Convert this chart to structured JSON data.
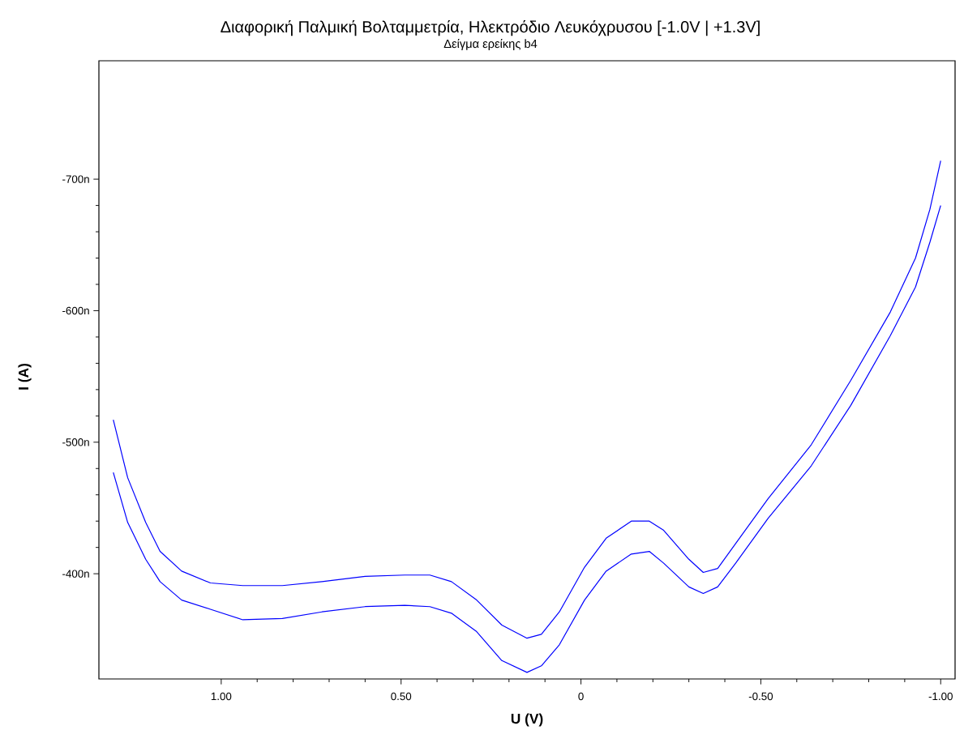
{
  "chart_data": {
    "type": "line",
    "title": "Διαφορική Παλμική Βολταμμετρία, Ηλεκτρόδιο Λευκόχρυσου [-1.0V | +1.3V]",
    "subtitle": "Δείγμα ερείκης b4",
    "xlabel": "U (V)",
    "ylabel": "I (A)",
    "xlim": [
      1.34,
      -1.04
    ],
    "ylim": [
      -320,
      -790
    ],
    "xticks": [
      {
        "value": 1.0,
        "label": "1.00"
      },
      {
        "value": 0.5,
        "label": "0.50"
      },
      {
        "value": 0,
        "label": "0"
      },
      {
        "value": -0.5,
        "label": "-0.50"
      },
      {
        "value": -1.0,
        "label": "-1.00"
      }
    ],
    "yticks": [
      {
        "value": -700,
        "label": "-700n"
      },
      {
        "value": -600,
        "label": "-600n"
      },
      {
        "value": -500,
        "label": "-500n"
      },
      {
        "value": -400,
        "label": "-400n"
      }
    ],
    "x": [
      1.3,
      1.26,
      1.21,
      1.17,
      1.11,
      1.03,
      0.94,
      0.83,
      0.72,
      0.6,
      0.49,
      0.42,
      0.36,
      0.29,
      0.22,
      0.15,
      0.11,
      0.06,
      -0.01,
      -0.07,
      -0.14,
      -0.19,
      -0.23,
      -0.3,
      -0.34,
      -0.38,
      -0.43,
      -0.52,
      -0.64,
      -0.75,
      -0.86,
      -0.93,
      -0.97,
      -1.0
    ],
    "series": [
      {
        "color": "#0000ff",
        "values": [
          -517,
          -473,
          -439,
          -417,
          -402,
          -393,
          -391,
          -391,
          -394,
          -398,
          -399,
          -399,
          -394,
          -380,
          -361,
          -351,
          -354,
          -371,
          -405,
          -427,
          -440,
          -440,
          -433,
          -411,
          -401,
          -404,
          -423,
          -457,
          -498,
          -547,
          -599,
          -640,
          -677,
          -714
        ]
      },
      {
        "color": "#0000ff",
        "values": [
          -477,
          -439,
          -411,
          -394,
          -380,
          -373,
          -365,
          -366,
          -371,
          -375,
          -376,
          -375,
          -370,
          -356,
          -334,
          -325,
          -330,
          -346,
          -380,
          -402,
          -415,
          -417,
          -408,
          -390,
          -385,
          -390,
          -408,
          -442,
          -482,
          -528,
          -581,
          -618,
          -652,
          -680
        ]
      }
    ],
    "grid": false,
    "marker": "none",
    "line_style": "solid"
  }
}
